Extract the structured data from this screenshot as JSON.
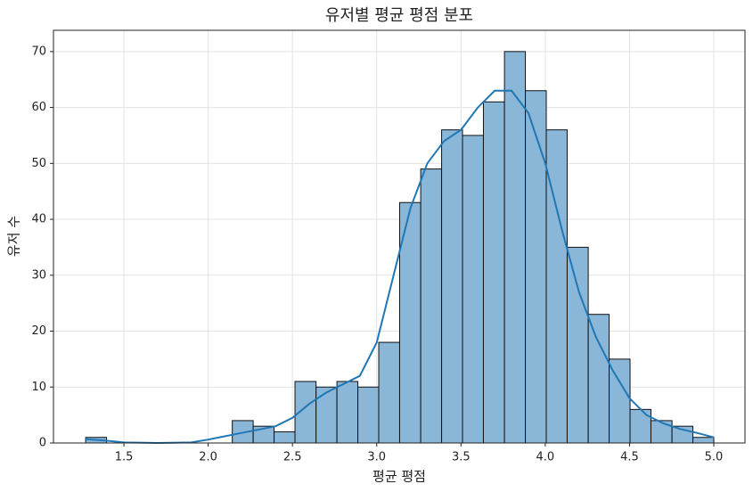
{
  "chart_data": {
    "type": "histogram",
    "title": "유저별 평균 평점 분포",
    "xlabel": "평균 평점",
    "ylabel": "유저 수",
    "bins": [
      1.273,
      1.397,
      1.521,
      1.646,
      1.77,
      1.894,
      2.018,
      2.143,
      2.267,
      2.391,
      2.515,
      2.64,
      2.764,
      2.888,
      3.012,
      3.136,
      3.261,
      3.385,
      3.509,
      3.633,
      3.758,
      3.882,
      4.006,
      4.13,
      4.255,
      4.379,
      4.503,
      4.627,
      4.752,
      4.876,
      5.0
    ],
    "counts": [
      1,
      0,
      0,
      0,
      0,
      0,
      0,
      4,
      3,
      2,
      11,
      10,
      11,
      10,
      18,
      43,
      49,
      56,
      55,
      61,
      70,
      63,
      56,
      35,
      23,
      15,
      6,
      4,
      3,
      1
    ],
    "color": "#8ab6d8",
    "edgecolor": "#111111",
    "kde": {
      "color": "#1f77b4",
      "x": [
        1.273,
        1.4,
        1.5,
        1.7,
        1.9,
        2.0,
        2.2,
        2.4,
        2.5,
        2.6,
        2.7,
        2.8,
        2.9,
        3.0,
        3.1,
        3.2,
        3.3,
        3.4,
        3.5,
        3.6,
        3.7,
        3.8,
        3.9,
        4.0,
        4.1,
        4.2,
        4.3,
        4.4,
        4.5,
        4.6,
        4.7,
        4.8,
        4.9,
        5.0
      ],
      "values": [
        0.7,
        0.4,
        0.1,
        0,
        0.1,
        0.6,
        1.8,
        3,
        4.5,
        7,
        9,
        10.5,
        12,
        18,
        30,
        42,
        50,
        54,
        56,
        60,
        63,
        63,
        59,
        50,
        38,
        27,
        19,
        13,
        8,
        5,
        3.5,
        2.5,
        1.8,
        1
      ]
    },
    "xlim": [
      1.082,
      5.185
    ],
    "ylim": [
      0,
      73.8
    ],
    "xticks": [
      1.5,
      {
        "value": 2.0,
        "label": "2.0"
      },
      2.5,
      {
        "value": 3.0,
        "label": "3.0"
      },
      3.5,
      {
        "value": 4.0,
        "label": "4.0"
      },
      4.5,
      {
        "value": 5.0,
        "label": "5.0"
      }
    ],
    "yticks": [
      0,
      10,
      20,
      30,
      40,
      50,
      60,
      70
    ],
    "grid": true
  }
}
